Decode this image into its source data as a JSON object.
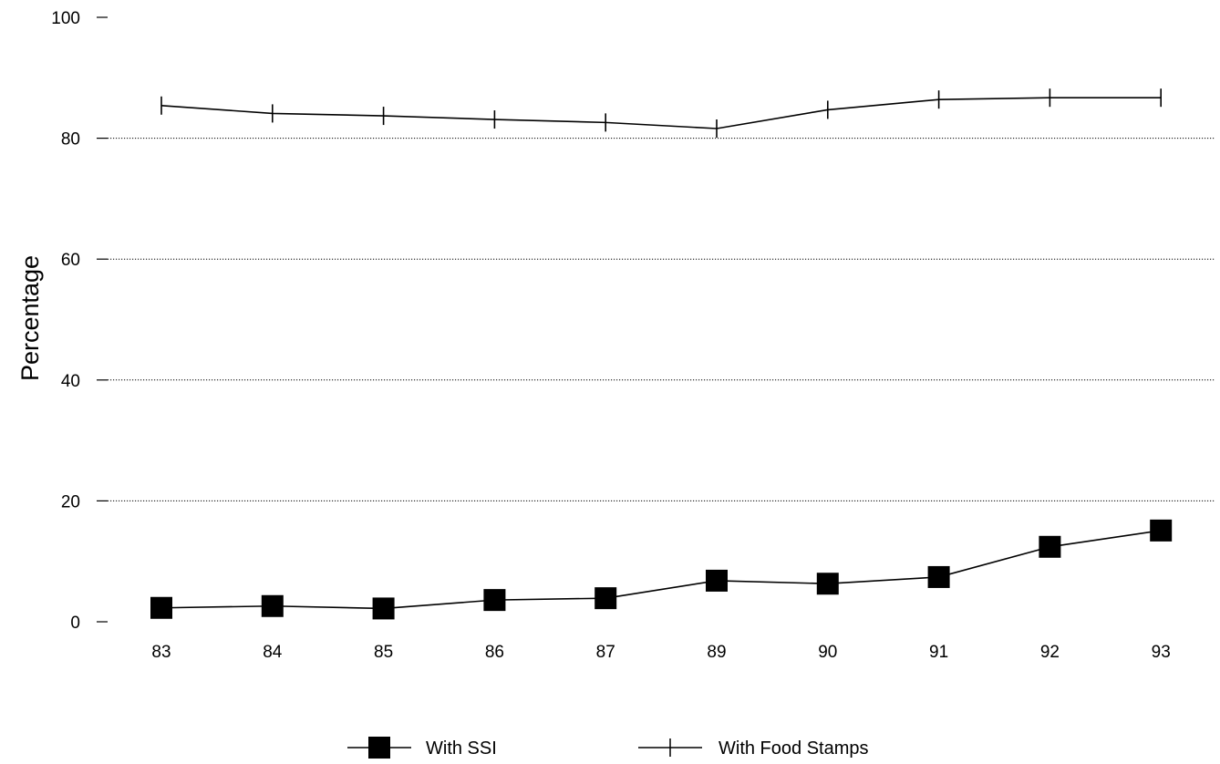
{
  "chart_data": {
    "type": "line",
    "title": "",
    "xlabel": "",
    "ylabel": "Percentage",
    "categories": [
      "83",
      "84",
      "85",
      "86",
      "87",
      "89",
      "90",
      "91",
      "92",
      "93"
    ],
    "ylim": [
      0,
      100
    ],
    "yticks": [
      "0",
      "20",
      "40",
      "60",
      "80",
      "100"
    ],
    "grid": "horizontal dotted at 20, 40, 60, 80",
    "legend": "bottom-center",
    "series": [
      {
        "name": "With SSI",
        "marker": "filled-square",
        "color": "#000000",
        "values": [
          2.3,
          2.6,
          2.2,
          3.6,
          3.9,
          6.8,
          6.3,
          7.4,
          12.4,
          15.1
        ]
      },
      {
        "name": "With Food Stamps",
        "marker": "plus",
        "color": "#000000",
        "values": [
          85.4,
          84.1,
          83.7,
          83.1,
          82.6,
          81.6,
          84.7,
          86.4,
          86.7,
          86.7
        ]
      }
    ]
  }
}
